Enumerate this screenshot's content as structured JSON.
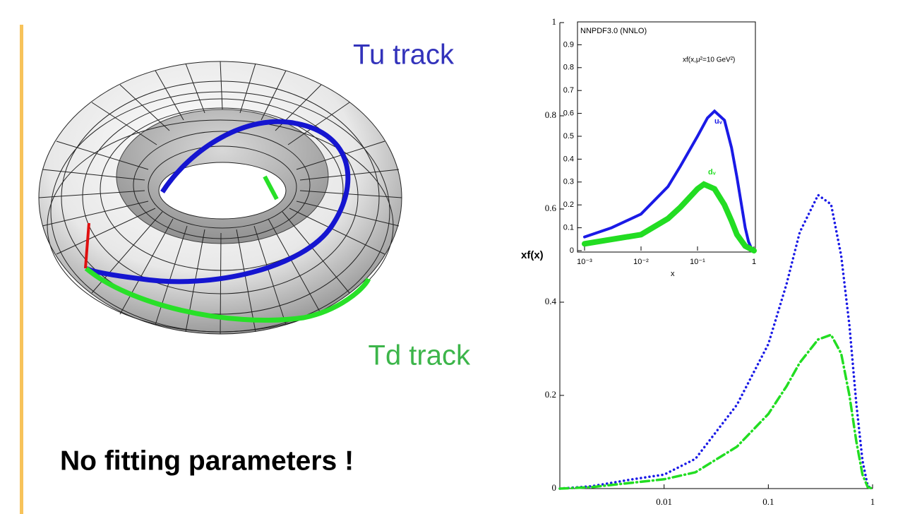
{
  "slide": {
    "torus_labels": [
      "Tu track",
      "Td track"
    ],
    "caption": "No fitting parameters !"
  },
  "chart_data": [
    {
      "type": "line",
      "ylabel": "xf(x)",
      "log_x": true,
      "xlim": [
        0.001,
        1
      ],
      "ylim": [
        0,
        1
      ],
      "xticks": [
        0.01,
        0.1,
        1
      ],
      "yticks": [
        0,
        0.2,
        0.4,
        0.6,
        0.8,
        1
      ],
      "series": [
        {
          "color": "#1a1ae6",
          "linestyle": "dotted",
          "x": [
            0.001,
            0.002,
            0.005,
            0.01,
            0.02,
            0.05,
            0.1,
            0.15,
            0.2,
            0.3,
            0.4,
            0.5,
            0.6,
            0.7,
            0.8,
            0.9,
            1
          ],
          "values": [
            0,
            0.005,
            0.02,
            0.03,
            0.064,
            0.18,
            0.31,
            0.44,
            0.55,
            0.63,
            0.61,
            0.5,
            0.35,
            0.18,
            0.06,
            0.005,
            0
          ]
        },
        {
          "color": "#22dd22",
          "linestyle": "dashdot",
          "x": [
            0.001,
            0.002,
            0.01,
            0.02,
            0.05,
            0.1,
            0.15,
            0.2,
            0.3,
            0.4,
            0.5,
            0.6,
            0.7,
            0.8,
            0.9,
            1
          ],
          "values": [
            0,
            0.003,
            0.02,
            0.035,
            0.09,
            0.16,
            0.22,
            0.27,
            0.32,
            0.33,
            0.29,
            0.2,
            0.1,
            0.03,
            0.003,
            0
          ]
        }
      ]
    },
    {
      "type": "line",
      "title": "NNPDF3.0 (NNLO)",
      "subtitle": "xf(x,μ²=10 GeV²)",
      "xlabel": "x",
      "log_x": true,
      "xlim": [
        0.001,
        1
      ],
      "ylim": [
        0,
        1
      ],
      "xticks": [
        {
          "value": 0.001,
          "label": "10⁻³"
        },
        {
          "value": 0.01,
          "label": "10⁻²"
        },
        {
          "value": 0.1,
          "label": "10⁻¹"
        },
        1
      ],
      "yticks": [
        0,
        0.1,
        0.2,
        0.3,
        0.4,
        0.5,
        0.6,
        0.7,
        0.8,
        0.9
      ],
      "series": [
        {
          "name": "uᵥ",
          "color": "#1a1ae6",
          "linestyle": "solid",
          "x": [
            0.001,
            0.003,
            0.01,
            0.03,
            0.05,
            0.1,
            0.15,
            0.2,
            0.3,
            0.4,
            0.5,
            0.6,
            0.7,
            0.8,
            0.9,
            1
          ],
          "values": [
            0.06,
            0.1,
            0.16,
            0.28,
            0.37,
            0.5,
            0.58,
            0.61,
            0.57,
            0.45,
            0.32,
            0.2,
            0.1,
            0.04,
            0.01,
            0
          ]
        },
        {
          "name": "dᵥ",
          "color": "#22dd22",
          "linestyle": "solid",
          "x": [
            0.001,
            0.01,
            0.03,
            0.05,
            0.1,
            0.13,
            0.2,
            0.3,
            0.4,
            0.5,
            0.7,
            1
          ],
          "values": [
            0.03,
            0.07,
            0.14,
            0.19,
            0.27,
            0.29,
            0.27,
            0.2,
            0.13,
            0.07,
            0.02,
            0
          ]
        }
      ]
    }
  ]
}
